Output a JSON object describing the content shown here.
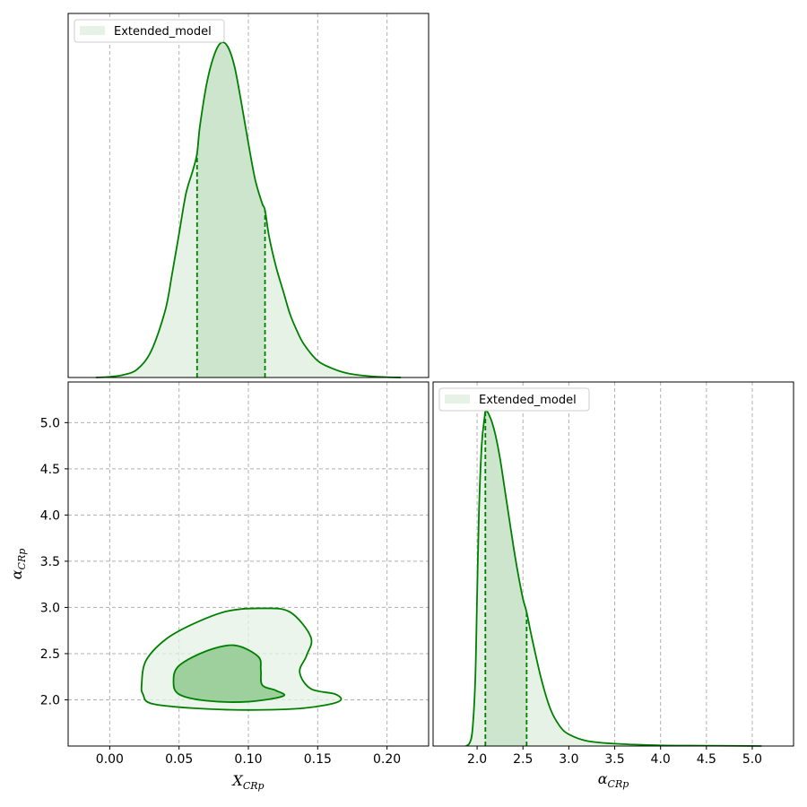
{
  "colors": {
    "line": "#008000",
    "fill_light": "#e6f2e6",
    "fill_mid": "#cce5cc",
    "fill_dark": "#9ed09e",
    "grid": "#b0b0b0"
  },
  "chart_data": [
    {
      "panel": "top-left",
      "type": "line",
      "title": "",
      "xlabel": "",
      "ylabel": "",
      "legend": {
        "entries": [
          "Extended_model"
        ],
        "placement": "top-left"
      },
      "grid": true,
      "xlim": [
        -0.03,
        0.23
      ],
      "xticks": [
        0.0,
        0.05,
        0.1,
        0.15,
        0.2
      ],
      "credible_interval": [
        0.063,
        0.112
      ],
      "series": [
        {
          "name": "Extended_model",
          "x": [
            -0.01,
            0.0,
            0.01,
            0.02,
            0.03,
            0.04,
            0.045,
            0.05,
            0.055,
            0.06,
            0.063,
            0.065,
            0.07,
            0.075,
            0.08,
            0.085,
            0.09,
            0.095,
            0.1,
            0.105,
            0.11,
            0.112,
            0.115,
            0.12,
            0.125,
            0.13,
            0.135,
            0.14,
            0.15,
            0.16,
            0.17,
            0.18,
            0.19,
            0.2,
            0.21
          ],
          "y": [
            0.0,
            0.002,
            0.008,
            0.025,
            0.08,
            0.2,
            0.31,
            0.43,
            0.55,
            0.62,
            0.67,
            0.75,
            0.88,
            0.96,
            1.0,
            0.99,
            0.93,
            0.82,
            0.7,
            0.59,
            0.52,
            0.5,
            0.42,
            0.33,
            0.26,
            0.19,
            0.14,
            0.1,
            0.05,
            0.028,
            0.014,
            0.007,
            0.003,
            0.001,
            0.0
          ]
        }
      ]
    },
    {
      "panel": "bottom-left",
      "type": "contour",
      "title": "",
      "xlabel": "X_CRp",
      "xlabel_main": "X",
      "xlabel_sub": "CRp",
      "ylabel": "α_CRp",
      "ylabel_main": "α",
      "ylabel_sub": "CRp",
      "grid": true,
      "xlim": [
        -0.03,
        0.23
      ],
      "ylim": [
        1.5,
        5.44
      ],
      "xticks": [
        0.0,
        0.05,
        0.1,
        0.15,
        0.2
      ],
      "yticks": [
        2.0,
        2.5,
        3.0,
        3.5,
        4.0,
        4.5,
        5.0
      ],
      "contours": [
        {
          "level": "outer",
          "points": [
            [
              0.03,
              1.96
            ],
            [
              0.06,
              1.91
            ],
            [
              0.1,
              1.89
            ],
            [
              0.14,
              1.91
            ],
            [
              0.165,
              1.98
            ],
            [
              0.163,
              2.06
            ],
            [
              0.145,
              2.12
            ],
            [
              0.137,
              2.3
            ],
            [
              0.142,
              2.48
            ],
            [
              0.145,
              2.68
            ],
            [
              0.13,
              2.95
            ],
            [
              0.11,
              2.99
            ],
            [
              0.085,
              2.96
            ],
            [
              0.06,
              2.82
            ],
            [
              0.04,
              2.65
            ],
            [
              0.026,
              2.42
            ],
            [
              0.023,
              2.16
            ],
            [
              0.024,
              2.06
            ]
          ]
        },
        {
          "level": "inner",
          "points": [
            [
              0.05,
              2.06
            ],
            [
              0.07,
              1.99
            ],
            [
              0.1,
              1.98
            ],
            [
              0.125,
              2.04
            ],
            [
              0.12,
              2.1
            ],
            [
              0.11,
              2.16
            ],
            [
              0.109,
              2.32
            ],
            [
              0.107,
              2.47
            ],
            [
              0.09,
              2.59
            ],
            [
              0.07,
              2.53
            ],
            [
              0.05,
              2.37
            ],
            [
              0.046,
              2.2
            ]
          ]
        }
      ]
    },
    {
      "panel": "bottom-right",
      "type": "line",
      "title": "",
      "xlabel": "α_CRp",
      "xlabel_main": "α",
      "xlabel_sub": "CRp",
      "ylabel": "",
      "legend": {
        "entries": [
          "Extended_model"
        ],
        "placement": "top-left"
      },
      "grid": true,
      "xlim": [
        1.52,
        5.45
      ],
      "xticks": [
        2.0,
        2.5,
        3.0,
        3.5,
        4.0,
        4.5,
        5.0
      ],
      "xtick_labels": [
        "2.0",
        "2.5",
        "3.0",
        "3.5",
        "4.0",
        "4.5",
        "5.0"
      ],
      "credible_interval": [
        2.09,
        2.54
      ],
      "series": [
        {
          "name": "Extended_model",
          "x": [
            1.88,
            1.92,
            1.95,
            1.98,
            2.0,
            2.02,
            2.05,
            2.08,
            2.09,
            2.11,
            2.13,
            2.16,
            2.2,
            2.25,
            2.3,
            2.35,
            2.4,
            2.45,
            2.5,
            2.54,
            2.6,
            2.7,
            2.8,
            2.9,
            3.0,
            3.2,
            3.5,
            4.0,
            4.5,
            5.1
          ],
          "y": [
            0.0,
            0.01,
            0.05,
            0.2,
            0.45,
            0.7,
            0.9,
            0.98,
            1.0,
            1.0,
            0.99,
            0.97,
            0.93,
            0.86,
            0.77,
            0.68,
            0.59,
            0.51,
            0.44,
            0.4,
            0.32,
            0.2,
            0.11,
            0.06,
            0.035,
            0.015,
            0.007,
            0.002,
            0.001,
            0.0
          ]
        }
      ]
    }
  ]
}
